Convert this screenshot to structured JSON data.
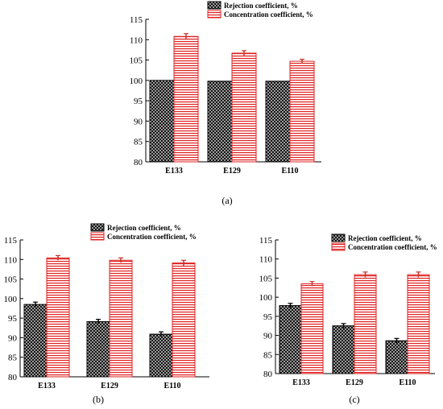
{
  "chart_data": [
    {
      "panel": "(a)",
      "type": "bar",
      "categories": [
        "E133",
        "E129",
        "E110"
      ],
      "series": [
        {
          "name": "Rejection coefficient, %",
          "values": [
            100.0,
            99.8,
            99.8
          ],
          "errors": [
            0.0,
            0.0,
            0.0
          ]
        },
        {
          "name": "Concentration coefficient, %",
          "values": [
            110.8,
            106.7,
            104.7
          ],
          "errors": [
            0.7,
            0.6,
            0.5
          ]
        }
      ],
      "ylim": [
        80,
        115
      ],
      "yticks": [
        "80",
        "85",
        "90",
        "95",
        "100",
        "105",
        "110",
        "115"
      ],
      "legend": "top-right"
    },
    {
      "panel": "(b)",
      "type": "bar",
      "categories": [
        "E133",
        "E129",
        "E110"
      ],
      "series": [
        {
          "name": "Rejection coefficient, %",
          "values": [
            98.5,
            94.1,
            90.9
          ],
          "errors": [
            0.6,
            0.6,
            0.6
          ]
        },
        {
          "name": "Concentration coefficient, %",
          "values": [
            110.4,
            109.8,
            109.1
          ],
          "errors": [
            0.6,
            0.6,
            0.7
          ]
        }
      ],
      "ylim": [
        80,
        115
      ],
      "yticks": [
        "80",
        "85",
        "90",
        "95",
        "100",
        "105",
        "110",
        "115"
      ],
      "legend": "top"
    },
    {
      "panel": "(c)",
      "type": "bar",
      "categories": [
        "E133",
        "E129",
        "E110"
      ],
      "series": [
        {
          "name": "Rejection coefficient, %",
          "values": [
            97.8,
            92.5,
            88.6
          ],
          "errors": [
            0.6,
            0.6,
            0.6
          ]
        },
        {
          "name": "Concentration coefficient, %",
          "values": [
            103.5,
            105.9,
            105.9
          ],
          "errors": [
            0.6,
            0.7,
            0.7
          ]
        }
      ],
      "ylim": [
        80,
        115
      ],
      "yticks": [
        "80",
        "85",
        "90",
        "95",
        "100",
        "105",
        "110",
        "115"
      ],
      "legend": "top-right"
    }
  ],
  "colors": {
    "rejection_fill": "#111111",
    "rejection_dots": "#ffffff",
    "concentration_fill": "#ffffff",
    "concentration_stripe": "#e02020",
    "error_bar": "#c0392b",
    "axis": "#000000"
  }
}
